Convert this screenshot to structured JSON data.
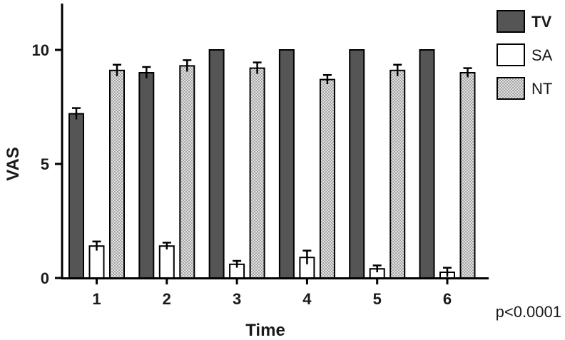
{
  "chart_data": {
    "type": "bar",
    "xlabel": "Time",
    "ylabel": "VAS",
    "categories": [
      "1",
      "2",
      "3",
      "4",
      "5",
      "6"
    ],
    "ylim": [
      0,
      12
    ],
    "yticks": [
      0,
      5,
      10
    ],
    "error_bars": true,
    "grid": false,
    "legend_position": "top-right",
    "series": [
      {
        "name": "TV",
        "fill": "#555555",
        "pattern": "solid",
        "values": [
          7.2,
          9.0,
          10.0,
          10.0,
          10.0,
          10.0
        ],
        "errors": [
          0.25,
          0.25,
          0,
          0,
          0,
          0
        ]
      },
      {
        "name": "SA",
        "fill": "#ffffff",
        "pattern": "solid",
        "values": [
          1.4,
          1.4,
          0.6,
          0.9,
          0.4,
          0.25
        ],
        "errors": [
          0.2,
          0.15,
          0.15,
          0.3,
          0.15,
          0.2
        ]
      },
      {
        "name": "NT",
        "fill": "#d6d6d6",
        "pattern": "dotted",
        "values": [
          9.1,
          9.3,
          9.2,
          8.7,
          9.1,
          9.0
        ],
        "errors": [
          0.25,
          0.25,
          0.25,
          0.2,
          0.25,
          0.2
        ]
      }
    ],
    "annotations": [
      "p<0.0001"
    ]
  }
}
